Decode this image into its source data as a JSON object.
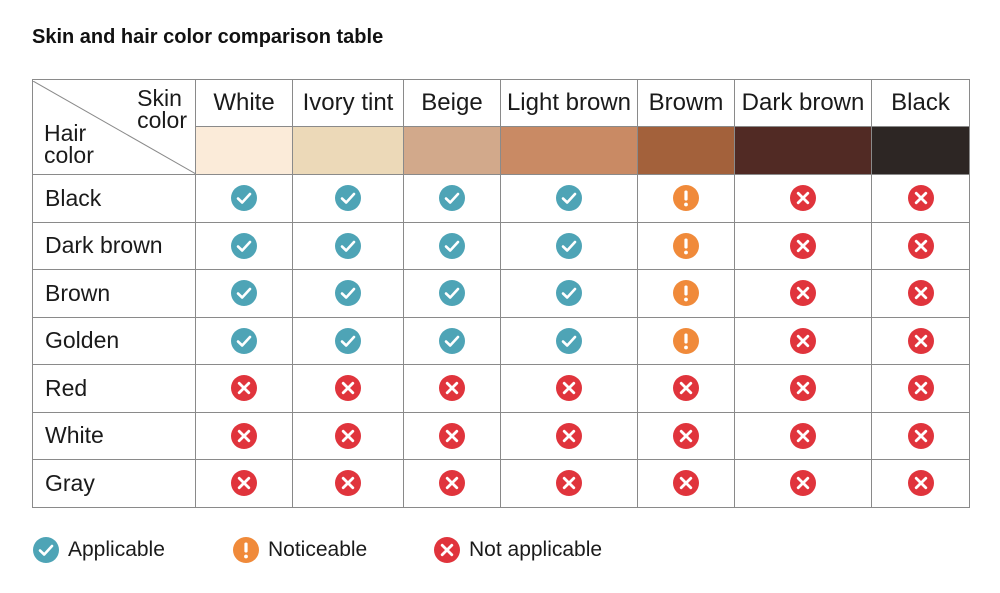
{
  "title": "Skin and hair color comparison table",
  "corner": {
    "skin_label": "Skin color",
    "hair_label": "Hair color"
  },
  "skin_colors": [
    {
      "label": "White",
      "swatch": "#fbebd9"
    },
    {
      "label": "Ivory tint",
      "swatch": "#ecd9b8"
    },
    {
      "label": "Beige",
      "swatch": "#d2a98b"
    },
    {
      "label": "Light brown",
      "swatch": "#c98a64"
    },
    {
      "label": "Browm",
      "swatch": "#a3613b"
    },
    {
      "label": "Dark brown",
      "swatch": "#512a24"
    },
    {
      "label": "Black",
      "swatch": "#2d2624"
    }
  ],
  "hair_rows": [
    {
      "label": "Black",
      "cells": [
        "applicable",
        "applicable",
        "applicable",
        "applicable",
        "noticeable",
        "not_applicable",
        "not_applicable"
      ]
    },
    {
      "label": "Dark brown",
      "cells": [
        "applicable",
        "applicable",
        "applicable",
        "applicable",
        "noticeable",
        "not_applicable",
        "not_applicable"
      ]
    },
    {
      "label": "Brown",
      "cells": [
        "applicable",
        "applicable",
        "applicable",
        "applicable",
        "noticeable",
        "not_applicable",
        "not_applicable"
      ]
    },
    {
      "label": "Golden",
      "cells": [
        "applicable",
        "applicable",
        "applicable",
        "applicable",
        "noticeable",
        "not_applicable",
        "not_applicable"
      ]
    },
    {
      "label": "Red",
      "cells": [
        "not_applicable",
        "not_applicable",
        "not_applicable",
        "not_applicable",
        "not_applicable",
        "not_applicable",
        "not_applicable"
      ]
    },
    {
      "label": "White",
      "cells": [
        "not_applicable",
        "not_applicable",
        "not_applicable",
        "not_applicable",
        "not_applicable",
        "not_applicable",
        "not_applicable"
      ]
    },
    {
      "label": "Gray",
      "cells": [
        "not_applicable",
        "not_applicable",
        "not_applicable",
        "not_applicable",
        "not_applicable",
        "not_applicable",
        "not_applicable"
      ]
    }
  ],
  "legend": {
    "applicable": {
      "label": "Applicable",
      "icon": "check-circle-icon",
      "color": "#4ea4b6"
    },
    "noticeable": {
      "label": "Noticeable",
      "icon": "exclamation-circle-icon",
      "color": "#f08a3a"
    },
    "not_applicable": {
      "label": "Not applicable",
      "icon": "x-circle-icon",
      "color": "#e0343c"
    }
  }
}
